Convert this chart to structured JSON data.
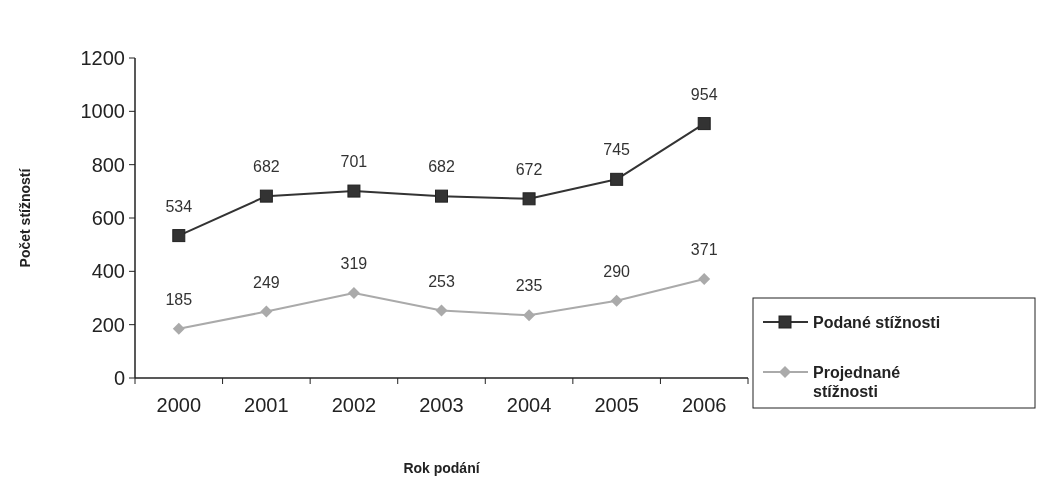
{
  "chart_data": {
    "type": "line",
    "xlabel": "Rok podání",
    "ylabel": "Počet stížností",
    "categories": [
      "2000",
      "2001",
      "2002",
      "2003",
      "2004",
      "2005",
      "2006"
    ],
    "series": [
      {
        "name": "Podané stížnosti",
        "color": "#333333",
        "marker": "square",
        "values": [
          534,
          682,
          701,
          682,
          672,
          745,
          954
        ]
      },
      {
        "name": "Projednané stížnosti",
        "color": "#aaaaaa",
        "marker": "diamond",
        "values": [
          185,
          249,
          319,
          253,
          235,
          290,
          371
        ]
      }
    ],
    "ylim": [
      0,
      1200
    ],
    "yticks": [
      0,
      200,
      400,
      600,
      800,
      1000,
      1200
    ],
    "grid": false,
    "legend": "right",
    "data_labels": true,
    "line_style": "solid"
  }
}
